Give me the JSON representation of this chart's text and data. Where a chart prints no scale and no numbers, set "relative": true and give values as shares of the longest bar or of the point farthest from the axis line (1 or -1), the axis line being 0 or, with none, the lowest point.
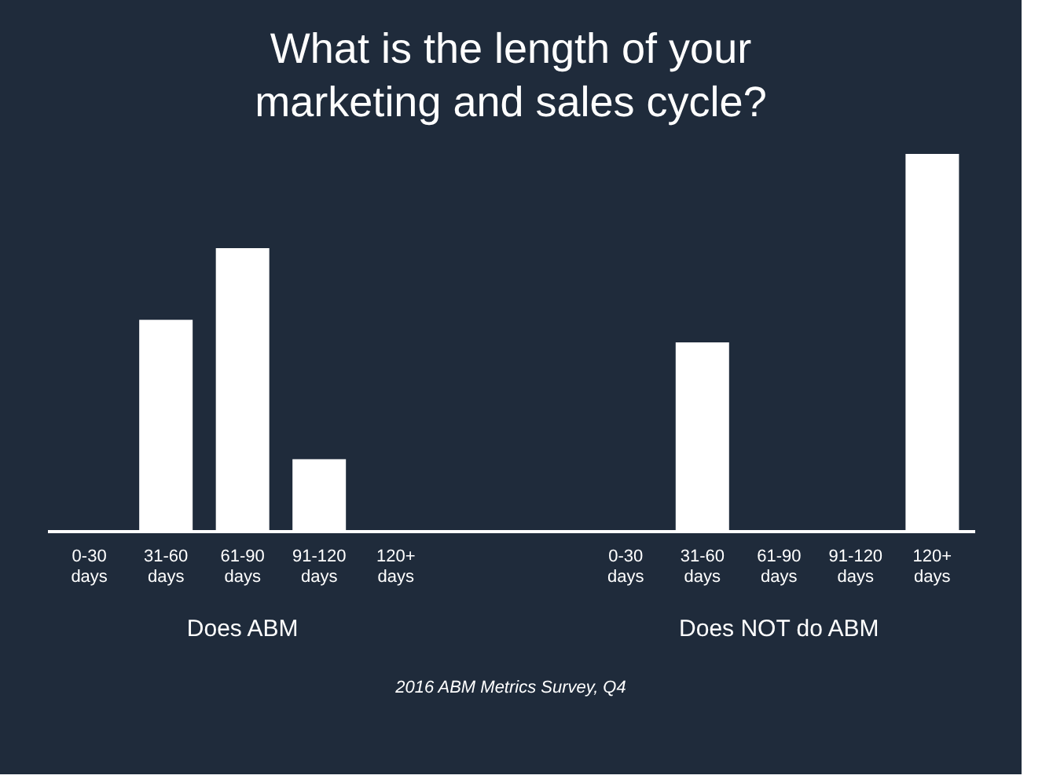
{
  "chart_data": {
    "type": "bar",
    "title": "What is the length of your marketing and sales cycle?",
    "categories": [
      "0-30 days",
      "31-60 days",
      "61-90 days",
      "91-120 days",
      "120+ days",
      "0-30 days",
      "31-60 days",
      "61-90 days",
      "91-120 days",
      "120+ days"
    ],
    "values": [
      0,
      0.56,
      0.75,
      0.19,
      0,
      0,
      0.5,
      0,
      0,
      1
    ],
    "color": "#ffffff",
    "relative": true,
    "grid": false,
    "annotations": [
      "Does ABM",
      "Does NOT do ABM",
      "2016 ABM Metrics Survey, Q4"
    ]
  }
}
